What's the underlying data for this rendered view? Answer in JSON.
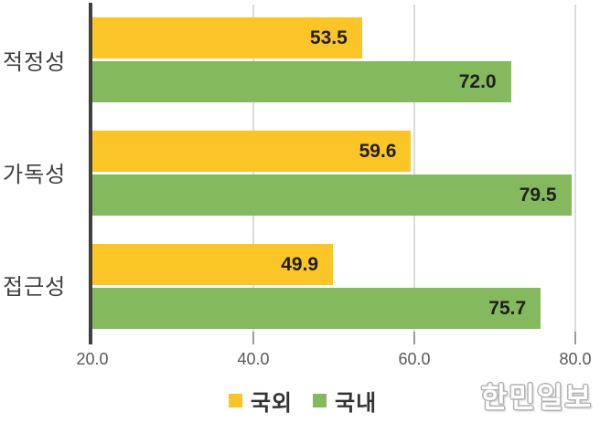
{
  "chart_data": {
    "type": "bar",
    "orientation": "horizontal",
    "title": "",
    "categories": [
      "적정성",
      "가독성",
      "접근성"
    ],
    "series": [
      {
        "name": "국외",
        "color": "#FCC527",
        "values": [
          53.5,
          59.6,
          49.9
        ]
      },
      {
        "name": "국내",
        "color": "#84B95D",
        "values": [
          72.0,
          79.5,
          75.7
        ]
      }
    ],
    "xlim": [
      20,
      80
    ],
    "xticks": [
      "20.0",
      "40.0",
      "60.0",
      "80.0"
    ],
    "grid": "vertical-light-gray",
    "legend_position": "bottom-center",
    "value_labels": "inside-end-bold"
  },
  "colors": {
    "axis_line": "#3f3f3f",
    "gridline": "#dcdcdc",
    "tick": "#9b9b9b",
    "tick_label": "#595959",
    "category_label": "#404040",
    "value_label": "#1f1f1f",
    "legend_label": "#333333"
  },
  "watermark": "한민일보"
}
